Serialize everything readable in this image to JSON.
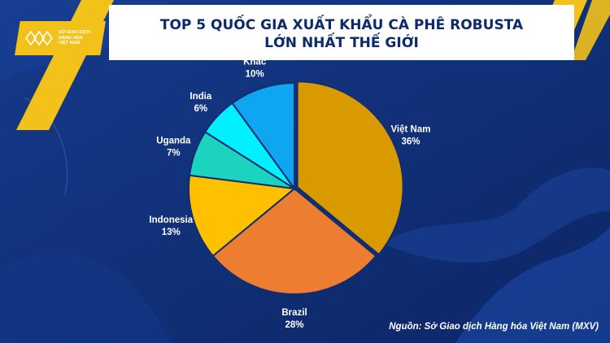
{
  "header": {
    "logo_text": "SỞ GIAO DỊCH\nHÀNG HÓA\nVIỆT NAM",
    "title_line1": "TOP 5 QUỐC GIA XUẤT KHẨU CÀ PHÊ ROBUSTA",
    "title_line2": "LỚN NHẤT THẾ GIỚI"
  },
  "source": "Nguồn: Sở Giao dịch Hàng hóa Việt Nam (MXV)",
  "colors": {
    "background": "#0f2d72",
    "accent_yellow": "#f2c21a",
    "title_text": "#0d2a6a",
    "label_text": "#ffffff"
  },
  "chart_data": {
    "type": "pie",
    "title": "TOP 5 QUỐC GIA XUẤT KHẨU CÀ PHÊ ROBUSTA LỚN NHẤT THẾ GIỚI",
    "categories": [
      "Việt Nam",
      "Brazil",
      "Indonesia",
      "Uganda",
      "India",
      "Khác"
    ],
    "values": [
      36,
      28,
      13,
      7,
      6,
      10
    ],
    "value_labels": [
      "36%",
      "28%",
      "13%",
      "7%",
      "6%",
      "10%"
    ],
    "colors": [
      "#d99a00",
      "#ed7d31",
      "#ffc000",
      "#1cd3c0",
      "#00f0ff",
      "#0ea6f0"
    ],
    "exploded": [
      "Việt Nam"
    ]
  }
}
